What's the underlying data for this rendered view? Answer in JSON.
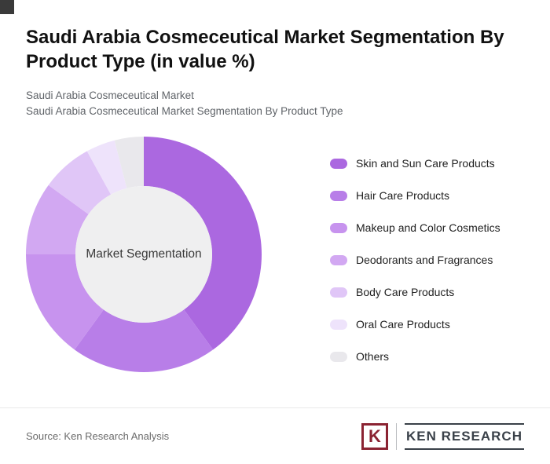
{
  "header": {
    "title": "Saudi Arabia Cosmeceutical Market Segmentation By Product Type (in value %)",
    "subtitle1": "Saudi Arabia Cosmeceutical Market",
    "subtitle2": "Saudi Arabia Cosmeceutical Market Segmentation By Product Type"
  },
  "chart_data": {
    "type": "pie",
    "donut": true,
    "unit": "%",
    "title": "Saudi Arabia Cosmeceutical Market Segmentation By Product Type (in value %)",
    "center_label": "Market Segmentation",
    "start_angle_deg": 0,
    "direction": "clockwise",
    "legend_position": "right",
    "hole_color": "#efeff0",
    "series": [
      {
        "name": "Skin and Sun Care Products",
        "value": 40,
        "color": "#ab68e0"
      },
      {
        "name": "Hair Care Products",
        "value": 20,
        "color": "#b87ee8"
      },
      {
        "name": "Makeup and Color Cosmetics",
        "value": 15,
        "color": "#c793ee"
      },
      {
        "name": "Deodorants and Fragrances",
        "value": 10,
        "color": "#d2a8f2"
      },
      {
        "name": "Body Care Products",
        "value": 7,
        "color": "#e0c6f7"
      },
      {
        "name": "Oral Care Products",
        "value": 4,
        "color": "#eee3fb"
      },
      {
        "name": "Others",
        "value": 4,
        "color": "#e9e8ec"
      }
    ]
  },
  "footer": {
    "source": "Source: Ken Research Analysis",
    "logo_monogram": "K",
    "logo_text": "KEN RESEARCH"
  }
}
